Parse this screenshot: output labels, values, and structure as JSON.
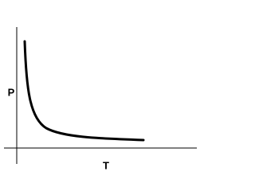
{
  "y_axis_label": "P",
  "x_axis_label": "T"
}
